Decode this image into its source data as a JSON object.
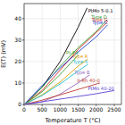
{
  "chart_data": {
    "type": "line",
    "x_label": "Temperature T (°C)",
    "y_label": "E(T) (mV)",
    "xlim": [
      0,
      2700
    ],
    "xticks": [
      0,
      500,
      1000,
      1500,
      2000,
      2500
    ],
    "ylim": [
      0,
      47
    ],
    "yticks": [
      0,
      10,
      20,
      30,
      40
    ],
    "grid": true,
    "series": [
      {
        "name": "PtMo 5-0.1",
        "color": "#000000",
        "x": [
          0,
          500,
          1000,
          1500,
          1750
        ],
        "values": [
          0,
          8,
          20,
          36,
          45
        ]
      },
      {
        "name": "Type D",
        "color": "#2ca02c",
        "x": [
          0,
          500,
          1000,
          1500,
          2000,
          2300
        ],
        "values": [
          0,
          8,
          17.8,
          26.5,
          34,
          39.5
        ]
      },
      {
        "name": "Type G",
        "color": "#d62728",
        "x": [
          0,
          500,
          1000,
          1500,
          2000,
          2315
        ],
        "values": [
          0,
          6.5,
          16,
          25.7,
          33.5,
          38.5
        ]
      },
      {
        "name": "Type C",
        "color": "#1f3fd4",
        "x": [
          0,
          500,
          1000,
          1500,
          2000,
          2315
        ],
        "values": [
          0,
          8.8,
          17,
          24.5,
          31.5,
          37.1
        ]
      },
      {
        "name": "Pt-Pd",
        "color": "#3aa02c",
        "x": [
          0,
          500,
          1000,
          1500
        ],
        "values": [
          0,
          5.9,
          14,
          23
        ]
      },
      {
        "name": "Type B",
        "color": "#9467bd",
        "x": [
          0,
          500,
          1000,
          1500,
          1820
        ],
        "values": [
          0,
          1.2,
          4.8,
          10.1,
          13.8
        ]
      },
      {
        "name": "Type R",
        "color": "#e0a000",
        "x": [
          0,
          500,
          1000,
          1500,
          1768
        ],
        "values": [
          0,
          4.5,
          10.5,
          17.9,
          21.1
        ]
      },
      {
        "name": "Type S",
        "color": "#17becf",
        "x": [
          0,
          500,
          1000,
          1500,
          1768
        ],
        "values": [
          0,
          4.2,
          9.6,
          15.6,
          18.7
        ]
      },
      {
        "name": "Ir-Rh 40-0",
        "color": "#c0392b",
        "x": [
          0,
          500,
          1000,
          1500,
          2000,
          2100
        ],
        "values": [
          0,
          2,
          4.5,
          7,
          9.5,
          10
        ]
      },
      {
        "name": "PtMo 40-20",
        "color": "#5b3fd4",
        "x": [
          0,
          1000,
          2000,
          2500
        ],
        "values": [
          0,
          2.5,
          5,
          6.5
        ]
      }
    ]
  }
}
